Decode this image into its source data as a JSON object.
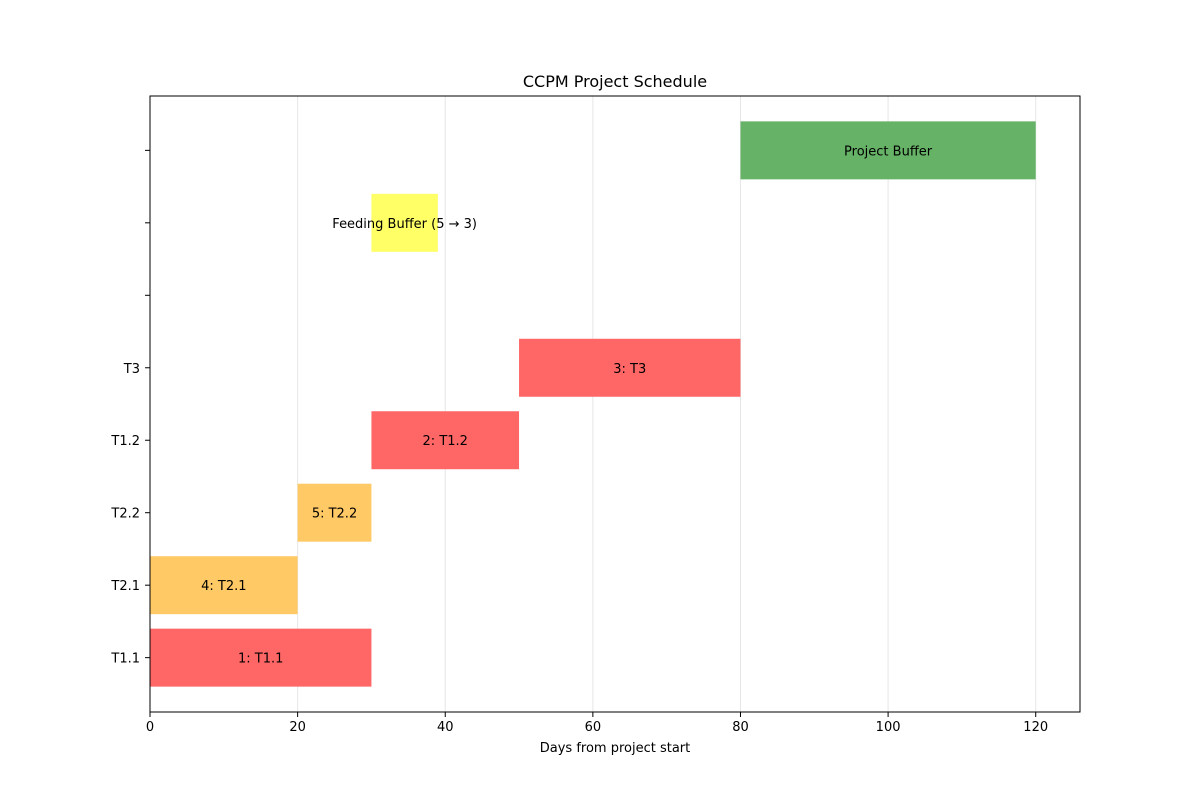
{
  "chart_data": {
    "type": "gantt",
    "title": "CCPM Project Schedule",
    "xlabel": "Days from project start",
    "ylabel": "",
    "xlim": [
      0,
      126
    ],
    "x_ticks": [
      0,
      20,
      40,
      60,
      80,
      100,
      120
    ],
    "grid": "x",
    "rows": [
      "T1.1",
      "T2.1",
      "T2.2",
      "T1.2",
      "T3",
      "",
      "",
      ""
    ],
    "tasks": [
      {
        "row": 0,
        "start": 0,
        "end": 30,
        "label": "1: T1.1",
        "color": "#ff6666"
      },
      {
        "row": 1,
        "start": 0,
        "end": 20,
        "label": "4: T2.1",
        "color": "#ffc966"
      },
      {
        "row": 2,
        "start": 20,
        "end": 30,
        "label": "5: T2.2",
        "color": "#ffc966"
      },
      {
        "row": 3,
        "start": 30,
        "end": 50,
        "label": "2: T1.2",
        "color": "#ff6666"
      },
      {
        "row": 4,
        "start": 50,
        "end": 80,
        "label": "3: T3",
        "color": "#ff6666"
      },
      {
        "row": 6,
        "start": 30,
        "end": 39,
        "label": "Feeding Buffer (5 → 3)",
        "color": "#ffff66"
      },
      {
        "row": 7,
        "start": 80,
        "end": 120,
        "label": "Project Buffer",
        "color": "#66b266"
      }
    ]
  }
}
